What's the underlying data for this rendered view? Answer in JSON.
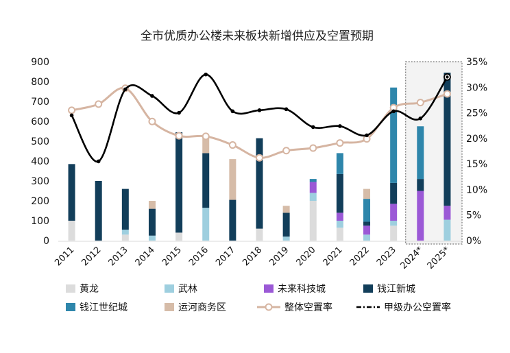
{
  "chart_data": {
    "type": "bar",
    "stacked": true,
    "title": "全市优质办公楼未来板块新增供应及空置预期",
    "categories": [
      "2011",
      "2012",
      "2013",
      "2014",
      "2015",
      "2016",
      "2017",
      "2018",
      "2019",
      "2020",
      "2021",
      "2022",
      "2023",
      "2024*",
      "2025*"
    ],
    "highlighted_categories": [
      "2024*",
      "2025*"
    ],
    "left_axis": {
      "min": 0,
      "max": 900,
      "ticks": [
        "0",
        "100",
        "200",
        "300",
        "400",
        "500",
        "600",
        "700",
        "800",
        "900"
      ]
    },
    "right_axis": {
      "min": 0,
      "max": 35,
      "ticks": [
        "0%",
        "5%",
        "10%",
        "15%",
        "20%",
        "25%",
        "30%",
        "35%"
      ]
    },
    "series": [
      {
        "name": "黄龙",
        "color": "#dcdcdc",
        "values": [
          100,
          0,
          30,
          0,
          40,
          0,
          0,
          60,
          0,
          200,
          65,
          0,
          75,
          0,
          0
        ]
      },
      {
        "name": "武林",
        "color": "#9ecfdf",
        "values": [
          0,
          0,
          25,
          25,
          0,
          165,
          0,
          0,
          20,
          40,
          35,
          30,
          25,
          0,
          105
        ]
      },
      {
        "name": "未来科技城",
        "color": "#9b59d6",
        "values": [
          0,
          0,
          0,
          0,
          0,
          0,
          0,
          0,
          0,
          55,
          40,
          45,
          85,
          250,
          70
        ]
      },
      {
        "name": "钱江新城",
        "color": "#123e5a",
        "values": [
          285,
          300,
          205,
          135,
          505,
          275,
          205,
          455,
          120,
          0,
          195,
          20,
          105,
          60,
          670
        ]
      },
      {
        "name": "钱江世纪城",
        "color": "#2e86ab",
        "values": [
          0,
          0,
          0,
          0,
          0,
          0,
          0,
          0,
          0,
          15,
          105,
          115,
          480,
          265,
          0
        ]
      },
      {
        "name": "运河商务区",
        "color": "#d6bca8",
        "values": [
          0,
          0,
          0,
          40,
          0,
          80,
          205,
          0,
          35,
          0,
          0,
          50,
          0,
          0,
          0
        ]
      }
    ],
    "lines": [
      {
        "name": "整体空置率",
        "color": "#d6b5a2",
        "marker": "circle",
        "values": [
          25.5,
          26.7,
          29.8,
          23.3,
          20.5,
          20.4,
          18.7,
          16.2,
          17.6,
          18.1,
          19.1,
          19.9,
          26.0,
          27.0,
          28.7
        ]
      },
      {
        "name": "甲级办公空置率",
        "color": "#000000",
        "marker": "dot",
        "values": [
          24.5,
          15.5,
          29.6,
          28.3,
          25.0,
          32.5,
          25.3,
          25.5,
          25.7,
          22.2,
          22.4,
          20.6,
          25.3,
          23.9,
          32.0
        ]
      }
    ],
    "legend_position": "bottom",
    "grid": false
  }
}
